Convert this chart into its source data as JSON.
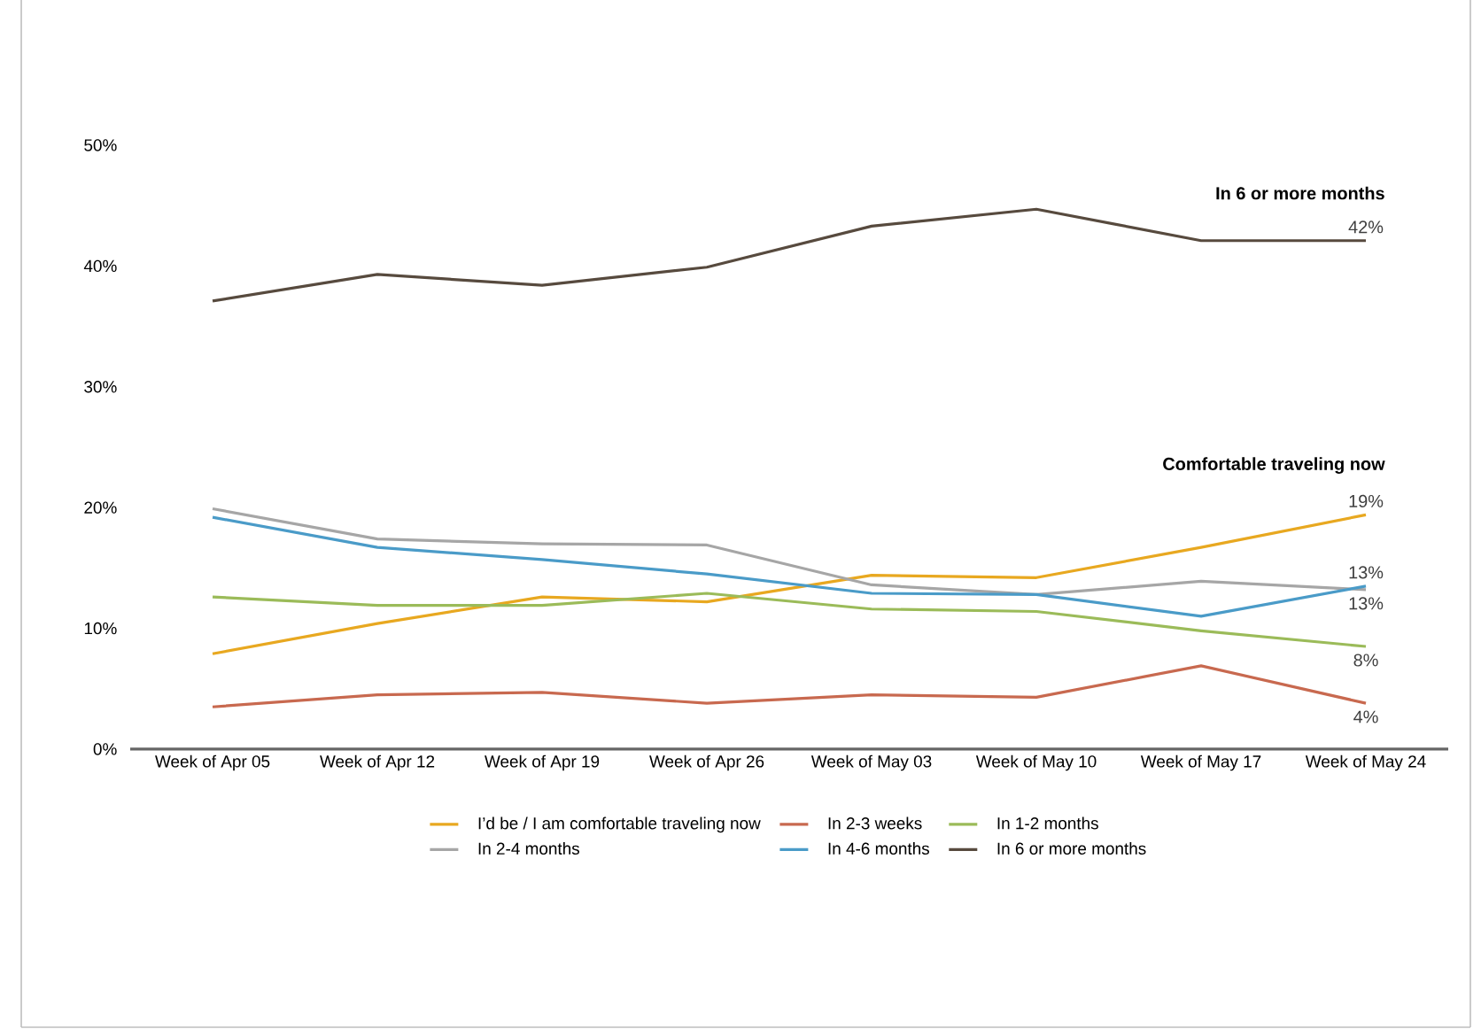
{
  "chart_data": {
    "type": "line",
    "categories": [
      "Week of Apr 05",
      "Week of Apr 12",
      "Week of Apr 19",
      "Week of Apr 26",
      "Week of May 03",
      "Week of May 10",
      "Week of May 17",
      "Week of May 24"
    ],
    "series": [
      {
        "name": "I’d be / I am comfortable traveling now",
        "color": "#e8a820",
        "values": [
          7.9,
          10.4,
          12.6,
          12.2,
          14.4,
          14.2,
          16.7,
          19.4
        ],
        "value_labels": [
          null,
          null,
          null,
          null,
          null,
          null,
          null,
          "19%"
        ]
      },
      {
        "name": "In 2-3 weeks",
        "color": "#c8694f",
        "values": [
          3.5,
          4.5,
          4.7,
          3.8,
          4.5,
          4.3,
          6.9,
          3.8
        ],
        "value_labels": [
          null,
          null,
          null,
          null,
          null,
          null,
          null,
          "4%"
        ]
      },
      {
        "name": "In 1-2 months",
        "color": "#9bbb59",
        "values": [
          12.6,
          11.9,
          11.9,
          12.9,
          11.6,
          11.4,
          9.8,
          8.5
        ],
        "value_labels": [
          null,
          null,
          null,
          null,
          null,
          null,
          null,
          "8%"
        ]
      },
      {
        "name": "In 2-4 months",
        "color": "#a6a6a6",
        "values": [
          19.9,
          17.4,
          17.0,
          16.9,
          13.6,
          12.8,
          13.9,
          13.2
        ],
        "value_labels": [
          null,
          null,
          null,
          null,
          null,
          null,
          null,
          "13%"
        ]
      },
      {
        "name": "In 4-6 months",
        "color": "#4a9bc8",
        "values": [
          19.2,
          16.7,
          15.7,
          14.5,
          12.9,
          12.8,
          11.0,
          13.5
        ],
        "value_labels": [
          null,
          null,
          null,
          null,
          null,
          null,
          null,
          "13%"
        ]
      },
      {
        "name": "In 6 or more months",
        "color": "#574a3e",
        "values": [
          37.1,
          39.3,
          38.4,
          39.9,
          43.3,
          44.7,
          42.1,
          42.1
        ],
        "value_labels": [
          null,
          null,
          null,
          null,
          null,
          null,
          null,
          "42%"
        ]
      }
    ],
    "ylim": [
      0,
      50
    ],
    "yticks": [
      {
        "value": 0,
        "label": "0%"
      },
      {
        "value": 10,
        "label": "10%"
      },
      {
        "value": 20,
        "label": "20%"
      },
      {
        "value": 30,
        "label": "30%"
      },
      {
        "value": 40,
        "label": "40%"
      },
      {
        "value": 50,
        "label": "50%"
      }
    ],
    "annotations": [
      {
        "text": "In 6 or more months",
        "x": "Week of May 24",
        "y": 42.1
      },
      {
        "text": "Comfortable traveling now",
        "x": "Week of May 24",
        "y": 19.4
      }
    ],
    "grid": false,
    "legend": "bottom",
    "marker": "none",
    "line_style": "solid"
  }
}
